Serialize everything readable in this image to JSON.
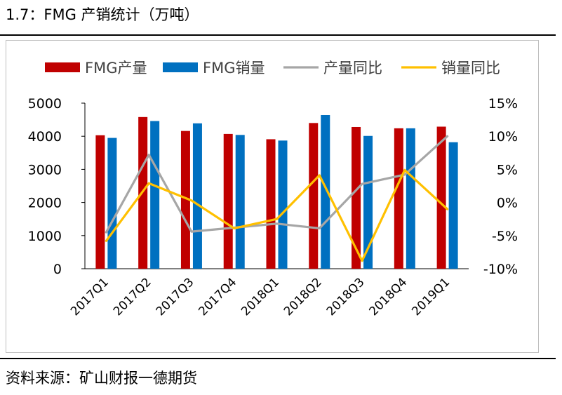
{
  "header": {
    "title": "1.7：FMG 产销统计（万吨）"
  },
  "footer": {
    "source": "资料来源：矿山财报一德期货"
  },
  "chart_data": {
    "type": "bar",
    "categories": [
      "2017Q1",
      "2017Q2",
      "2017Q3",
      "2017Q4",
      "2018Q1",
      "2018Q2",
      "2018Q3",
      "2018Q4",
      "2019Q1"
    ],
    "series": [
      {
        "name": "FMG产量",
        "type": "bar",
        "axis": "left",
        "color": "#c00000",
        "values": [
          4030,
          4580,
          4160,
          4070,
          3910,
          4400,
          4280,
          4240,
          4290
        ]
      },
      {
        "name": "FMG销量",
        "type": "bar",
        "axis": "left",
        "color": "#0070c0",
        "values": [
          3950,
          4460,
          4390,
          4040,
          3870,
          4640,
          4010,
          4240,
          3820
        ]
      },
      {
        "name": "产量同比",
        "type": "line",
        "axis": "right",
        "color": "#a6a6a6",
        "values": [
          -4.5,
          7.2,
          -4.4,
          -3.8,
          -3.2,
          -3.9,
          2.8,
          4.2,
          10.0
        ]
      },
      {
        "name": "销量同比",
        "type": "line",
        "axis": "right",
        "color": "#ffc000",
        "values": [
          -5.8,
          2.9,
          0.3,
          -3.9,
          -2.5,
          4.1,
          -8.8,
          4.9,
          -1.0
        ]
      }
    ],
    "y_left": {
      "min": 0,
      "max": 5000,
      "ticks": [
        "0",
        "1000",
        "2000",
        "3000",
        "4000",
        "5000"
      ]
    },
    "y_right": {
      "min": -10,
      "max": 15,
      "ticks": [
        "-10%",
        "-5%",
        "0%",
        "5%",
        "10%",
        "15%"
      ]
    },
    "grid": false,
    "legend_position": "top"
  }
}
